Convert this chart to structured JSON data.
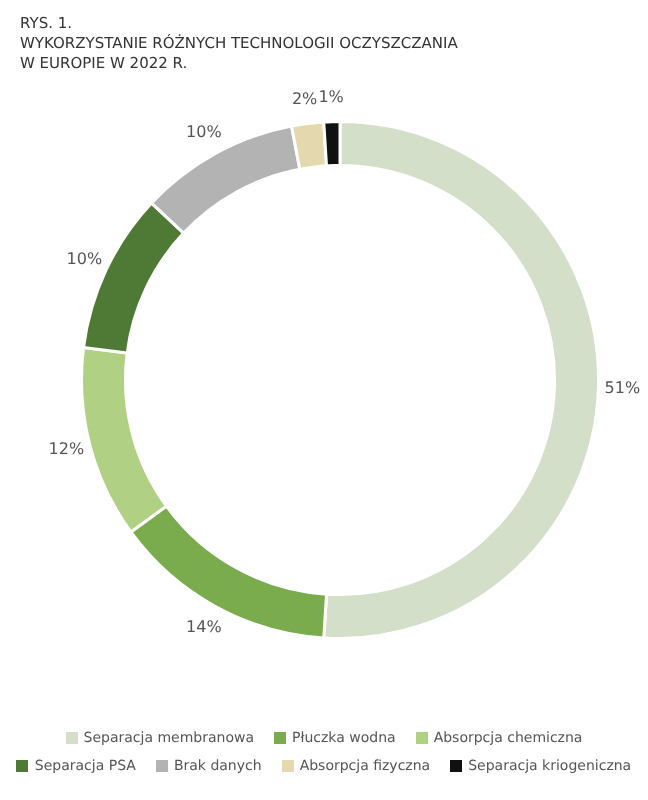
{
  "chart_data": {
    "type": "donut",
    "title": "WYKORZYSTANIE RÓŻNYCH TECHNOLOGII OCZYSZCZANIA\nW EUROPIE W 2022 R.",
    "annotations": [
      "RYS. 1."
    ],
    "categories": [
      "Separacja membranowa",
      "Płuczka wodna",
      "Absorpcja chemiczna",
      "Separacja PSA",
      "Brak danych",
      "Absorpcja fizyczna",
      "Separacja kriogeniczna"
    ],
    "values": [
      51,
      14,
      12,
      10,
      10,
      2,
      1
    ],
    "value_labels": [
      "51%",
      "14%",
      "12%",
      "10%",
      "10%",
      "2%",
      "1%"
    ],
    "colors": [
      "#d3dfc8",
      "#7aab4c",
      "#b0d184",
      "#4f7a35",
      "#b3b3b3",
      "#e4d9ae",
      "#111111"
    ],
    "legend": "bottom"
  }
}
